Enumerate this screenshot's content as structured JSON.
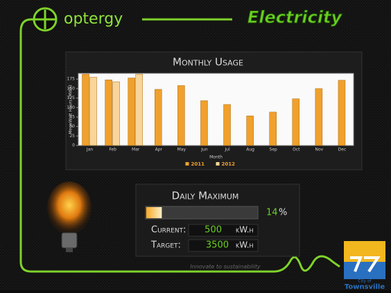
{
  "header": {
    "brand": "optergy",
    "title": "Electricity"
  },
  "chart_data": {
    "type": "bar",
    "title": "Monthly Usage",
    "y_label": "MegaWatt Hours (MWh)",
    "x_label": "Month",
    "categories": [
      "Jan",
      "Feb",
      "Mar",
      "Apr",
      "May",
      "Jun",
      "Jul",
      "Aug",
      "Sep",
      "Oct",
      "Nov",
      "Dec"
    ],
    "series": [
      {
        "name": "2011",
        "color": "#f0a02c",
        "values": [
          188,
          173,
          178,
          148,
          158,
          118,
          108,
          78,
          88,
          123,
          150,
          172
        ]
      },
      {
        "name": "2012",
        "color": "#f9d59a",
        "values": [
          180,
          168,
          188,
          null,
          null,
          null,
          null,
          null,
          null,
          null,
          null,
          null
        ]
      }
    ],
    "ylim": [
      0,
      190
    ],
    "yticks": [
      0,
      25,
      50,
      75,
      100,
      125,
      150,
      175
    ],
    "legend": "bottom"
  },
  "daily": {
    "title": "Daily Maximum",
    "percent": 14,
    "percent_unit": "%",
    "current_label": "Current:",
    "current_value": 500,
    "current_unit": "kW.h",
    "target_label": "Target:",
    "target_value": 3500,
    "target_unit": "kW.h"
  },
  "footer": {
    "tagline": "Innovate to sustainability",
    "logo_small": "City of",
    "logo_name": "Townsville"
  }
}
